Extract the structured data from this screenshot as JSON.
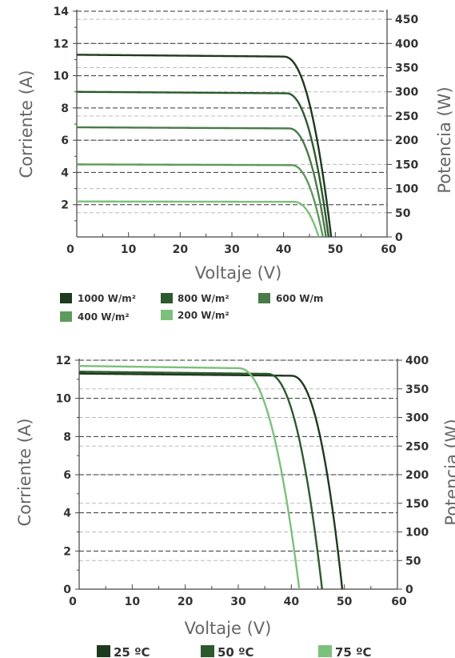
{
  "chart_data": [
    {
      "type": "line",
      "title": "",
      "xlabel": "Voltaje (V)",
      "ylabel": "Corriente (A)",
      "y2label": "Potencia (W)",
      "xlim": [
        0,
        60
      ],
      "ylim": [
        0,
        14
      ],
      "y2lim": [
        0,
        466.7
      ],
      "x_ticks": [
        "0",
        "10",
        "20",
        "30",
        "40",
        "50",
        "60"
      ],
      "y_ticks": [
        "2",
        "4",
        "6",
        "8",
        "10",
        "12",
        "14"
      ],
      "y2_ticks": [
        "0",
        "50",
        "100",
        "150",
        "200",
        "250",
        "300",
        "350",
        "400",
        "450"
      ],
      "grid": true,
      "legend_position": "bottom",
      "series": [
        {
          "name": "1000 W/m²",
          "color": "#1e3a1e",
          "isc": 11.3,
          "knee_v": 40,
          "voc": 49.2
        },
        {
          "name": "800 W/m²",
          "color": "#2d5a2d",
          "isc": 9.0,
          "knee_v": 40.5,
          "voc": 48.7
        },
        {
          "name": "600 W/m",
          "color": "#4a7a4a",
          "isc": 6.8,
          "knee_v": 41,
          "voc": 48.2
        },
        {
          "name": "400 W/m²",
          "color": "#5e9a5e",
          "isc": 4.5,
          "knee_v": 41.5,
          "voc": 47.6
        },
        {
          "name": "200 W/m²",
          "color": "#7cc07c",
          "isc": 2.2,
          "knee_v": 42,
          "voc": 46.8
        }
      ]
    },
    {
      "type": "line",
      "title": "",
      "xlabel": "Voltaje (V)",
      "ylabel": "Corriente (A)",
      "y2label": "Potencia (W)",
      "xlim": [
        0,
        60
      ],
      "ylim": [
        0,
        12
      ],
      "y2lim": [
        0,
        400
      ],
      "x_ticks": [
        "0",
        "10",
        "20",
        "30",
        "40",
        "50",
        "60"
      ],
      "y_ticks": [
        "0",
        "2",
        "4",
        "6",
        "8",
        "10",
        "12"
      ],
      "y2_ticks": [
        "0",
        "50",
        "100",
        "150",
        "200",
        "250",
        "300",
        "350",
        "400"
      ],
      "grid": true,
      "legend_position": "bottom",
      "series": [
        {
          "name": "25 ºC",
          "color": "#1e3a1e",
          "isc": 11.3,
          "knee_v": 40,
          "voc": 49.6
        },
        {
          "name": "50 ºC",
          "color": "#2d5a2d",
          "isc": 11.4,
          "knee_v": 35.5,
          "voc": 45.8
        },
        {
          "name": "75 ºC",
          "color": "#7cc07c",
          "isc": 11.7,
          "knee_v": 30,
          "voc": 41.5
        }
      ]
    }
  ]
}
